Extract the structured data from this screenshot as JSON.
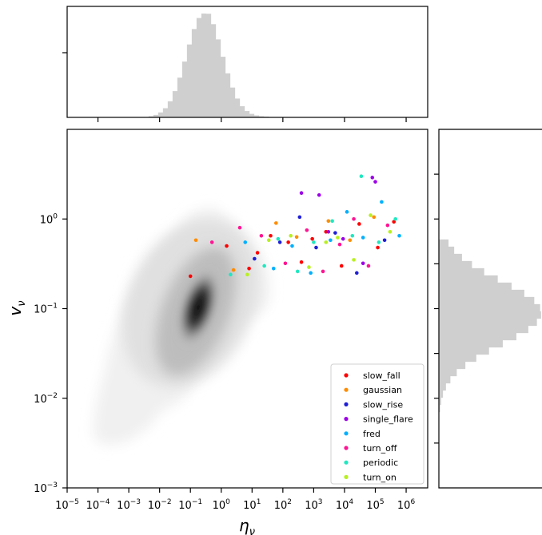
{
  "chart_data": {
    "type": "scatter",
    "x_scale": "log",
    "y_scale": "log",
    "xlim": [
      1e-05,
      5000000
    ],
    "ylim": [
      0.001,
      10
    ],
    "xlabel": "η_ν",
    "ylabel": "v_ν",
    "x_ticks": [
      "10^-5",
      "10^-4",
      "10^-3",
      "10^-2",
      "10^-1",
      "10^0",
      "10^1",
      "10^2",
      "10^3",
      "10^4",
      "10^5",
      "10^6"
    ],
    "y_ticks": [
      "10^-3",
      "10^-2",
      "10^-1",
      "10^0"
    ],
    "density_background": "grayscale kernel density of the full source population, peak near η_ν≈0.3, v_ν≈0.1",
    "top_histogram": "distribution of η_ν, peaked near 10^-0.6",
    "right_histogram": "distribution of v_ν, peaked near 10^-1",
    "legend_position": "lower-right",
    "series": [
      {
        "name": "slow_fall",
        "color": "#ff0000",
        "points": [
          [
            0.1,
            0.23
          ],
          [
            1.5,
            0.5
          ],
          [
            8,
            0.28
          ],
          [
            15,
            0.42
          ],
          [
            40,
            0.65
          ],
          [
            150,
            0.55
          ],
          [
            400,
            0.33
          ],
          [
            900,
            0.6
          ],
          [
            2500,
            0.72
          ],
          [
            8000,
            0.3
          ],
          [
            30000,
            0.88
          ],
          [
            120000,
            0.48
          ],
          [
            400000,
            0.93
          ]
        ]
      },
      {
        "name": "gaussian",
        "color": "#ff8c00",
        "points": [
          [
            0.15,
            0.58
          ],
          [
            2.5,
            0.27
          ],
          [
            60,
            0.9
          ],
          [
            280,
            0.63
          ],
          [
            3000,
            0.95
          ],
          [
            15000,
            0.58
          ],
          [
            90000,
            1.05
          ]
        ]
      },
      {
        "name": "slow_rise",
        "color": "#1f1fd6",
        "points": [
          [
            12,
            0.36
          ],
          [
            80,
            0.55
          ],
          [
            350,
            1.05
          ],
          [
            1200,
            0.48
          ],
          [
            5000,
            0.7
          ],
          [
            25000,
            0.25
          ],
          [
            200000,
            0.58
          ]
        ]
      },
      {
        "name": "single_flare",
        "color": "#9b00e6",
        "points": [
          [
            400,
            1.95
          ],
          [
            1500,
            1.85
          ],
          [
            3000,
            0.72
          ],
          [
            9000,
            0.6
          ],
          [
            40000,
            0.32
          ],
          [
            80000,
            2.9
          ],
          [
            100000,
            2.6
          ]
        ]
      },
      {
        "name": "fred",
        "color": "#00b0ff",
        "points": [
          [
            6,
            0.55
          ],
          [
            50,
            0.28
          ],
          [
            200,
            0.5
          ],
          [
            800,
            0.25
          ],
          [
            3500,
            0.58
          ],
          [
            12000,
            1.2
          ],
          [
            40000,
            0.62
          ],
          [
            160000,
            1.55
          ],
          [
            600000,
            0.65
          ]
        ]
      },
      {
        "name": "turn_off",
        "color": "#ff1493",
        "points": [
          [
            0.5,
            0.55
          ],
          [
            4,
            0.8
          ],
          [
            20,
            0.65
          ],
          [
            120,
            0.32
          ],
          [
            600,
            0.75
          ],
          [
            2000,
            0.26
          ],
          [
            7000,
            0.52
          ],
          [
            20000,
            1.0
          ],
          [
            60000,
            0.3
          ],
          [
            250000,
            0.85
          ]
        ]
      },
      {
        "name": "periodic",
        "color": "#20e8c0",
        "points": [
          [
            2,
            0.24
          ],
          [
            25,
            0.3
          ],
          [
            70,
            0.6
          ],
          [
            300,
            0.26
          ],
          [
            1000,
            0.55
          ],
          [
            4000,
            0.95
          ],
          [
            18000,
            0.65
          ],
          [
            35000,
            3.0
          ],
          [
            130000,
            0.55
          ],
          [
            450000,
            1.0
          ]
        ]
      },
      {
        "name": "turn_on",
        "color": "#b8f020",
        "points": [
          [
            7,
            0.24
          ],
          [
            35,
            0.58
          ],
          [
            180,
            0.65
          ],
          [
            700,
            0.29
          ],
          [
            2500,
            0.55
          ],
          [
            6000,
            0.62
          ],
          [
            20000,
            0.35
          ],
          [
            70000,
            1.1
          ],
          [
            300000,
            0.72
          ]
        ]
      }
    ]
  }
}
